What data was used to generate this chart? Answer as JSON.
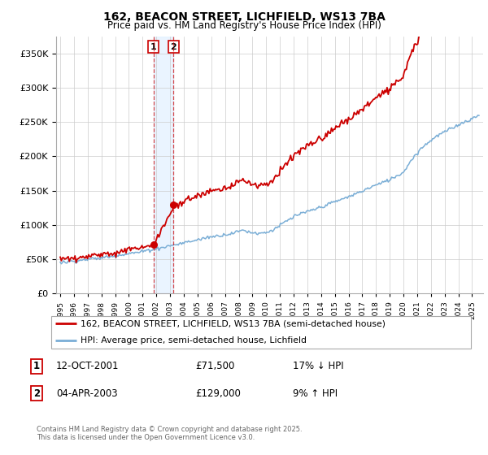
{
  "title": "162, BEACON STREET, LICHFIELD, WS13 7BA",
  "subtitle": "Price paid vs. HM Land Registry's House Price Index (HPI)",
  "legend_line1": "162, BEACON STREET, LICHFIELD, WS13 7BA (semi-detached house)",
  "legend_line2": "HPI: Average price, semi-detached house, Lichfield",
  "transaction1_label": "1",
  "transaction1_date": "12-OCT-2001",
  "transaction1_price": "£71,500",
  "transaction1_hpi": "17% ↓ HPI",
  "transaction2_label": "2",
  "transaction2_date": "04-APR-2003",
  "transaction2_price": "£129,000",
  "transaction2_hpi": "9% ↑ HPI",
  "footer": "Contains HM Land Registry data © Crown copyright and database right 2025.\nThis data is licensed under the Open Government Licence v3.0.",
  "hpi_color": "#7aaed6",
  "price_color": "#cc0000",
  "vline_color": "#cc0000",
  "shade_color": "#ddeeff",
  "background_color": "#ffffff",
  "ylim": [
    0,
    375000
  ],
  "ylabel_ticks": [
    0,
    50000,
    100000,
    150000,
    200000,
    250000,
    300000,
    350000
  ],
  "transaction1_x": 2001.79,
  "transaction2_x": 2003.25
}
